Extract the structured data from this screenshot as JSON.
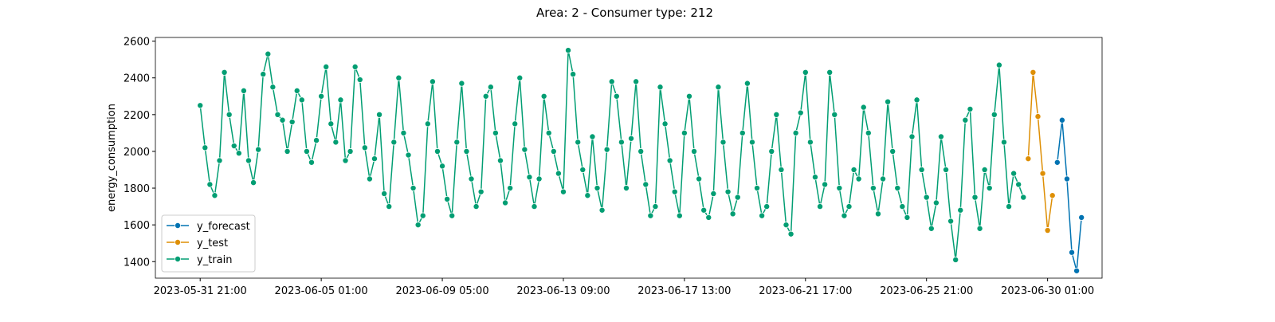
{
  "chart_data": {
    "type": "line",
    "title": "Area: 2 - Consumer type: 212",
    "ylabel": "energy_consumption",
    "xlim": [
      "2023-05-30 08:00",
      "2023-07-01 22:00"
    ],
    "ylim": [
      1310,
      2620
    ],
    "xticks": [
      "2023-05-31 21:00",
      "2023-06-05 01:00",
      "2023-06-09 05:00",
      "2023-06-13 09:00",
      "2023-06-17 13:00",
      "2023-06-21 17:00",
      "2023-06-25 21:00",
      "2023-06-30 01:00"
    ],
    "yticks": [
      1400,
      1600,
      1800,
      2000,
      2200,
      2400,
      2600
    ],
    "legend": "lower left",
    "marker": true,
    "series": [
      {
        "name": "y_forecast",
        "color": "#0173b2",
        "x": [
          "2023-06-30 09:00",
          "2023-06-30 13:00",
          "2023-06-30 17:00",
          "2023-06-30 21:00",
          "2023-07-01 01:00",
          "2023-07-01 05:00"
        ],
        "values": [
          1940,
          2170,
          1850,
          1450,
          1350,
          1640
        ]
      },
      {
        "name": "y_test",
        "color": "#de8f05",
        "x": [
          "2023-06-29 09:00",
          "2023-06-29 13:00",
          "2023-06-29 17:00",
          "2023-06-29 21:00",
          "2023-06-30 01:00",
          "2023-06-30 05:00"
        ],
        "values": [
          1960,
          2430,
          2190,
          1880,
          1570,
          1760
        ]
      },
      {
        "name": "y_train",
        "color": "#029e73",
        "x": [
          "2023-05-31 21:00",
          "2023-06-01 01:00",
          "2023-06-01 05:00",
          "2023-06-01 09:00",
          "2023-06-01 13:00",
          "2023-06-01 17:00",
          "2023-06-01 21:00",
          "2023-06-02 01:00",
          "2023-06-02 05:00",
          "2023-06-02 09:00",
          "2023-06-02 13:00",
          "2023-06-02 17:00",
          "2023-06-02 21:00",
          "2023-06-03 01:00",
          "2023-06-03 05:00",
          "2023-06-03 09:00",
          "2023-06-03 13:00",
          "2023-06-03 17:00",
          "2023-06-03 21:00",
          "2023-06-04 01:00",
          "2023-06-04 05:00",
          "2023-06-04 09:00",
          "2023-06-04 13:00",
          "2023-06-04 17:00",
          "2023-06-04 21:00",
          "2023-06-05 01:00",
          "2023-06-05 05:00",
          "2023-06-05 09:00",
          "2023-06-05 13:00",
          "2023-06-05 17:00",
          "2023-06-05 21:00",
          "2023-06-06 01:00",
          "2023-06-06 05:00",
          "2023-06-06 09:00",
          "2023-06-06 13:00",
          "2023-06-06 17:00",
          "2023-06-06 21:00",
          "2023-06-07 01:00",
          "2023-06-07 05:00",
          "2023-06-07 09:00",
          "2023-06-07 13:00",
          "2023-06-07 17:00",
          "2023-06-07 21:00",
          "2023-06-08 01:00",
          "2023-06-08 05:00",
          "2023-06-08 09:00",
          "2023-06-08 13:00",
          "2023-06-08 17:00",
          "2023-06-08 21:00",
          "2023-06-09 01:00",
          "2023-06-09 05:00",
          "2023-06-09 09:00",
          "2023-06-09 13:00",
          "2023-06-09 17:00",
          "2023-06-09 21:00",
          "2023-06-10 01:00",
          "2023-06-10 05:00",
          "2023-06-10 09:00",
          "2023-06-10 13:00",
          "2023-06-10 17:00",
          "2023-06-10 21:00",
          "2023-06-11 01:00",
          "2023-06-11 05:00",
          "2023-06-11 09:00",
          "2023-06-11 13:00",
          "2023-06-11 17:00",
          "2023-06-11 21:00",
          "2023-06-12 01:00",
          "2023-06-12 05:00",
          "2023-06-12 09:00",
          "2023-06-12 13:00",
          "2023-06-12 17:00",
          "2023-06-12 21:00",
          "2023-06-13 01:00",
          "2023-06-13 05:00",
          "2023-06-13 09:00",
          "2023-06-13 13:00",
          "2023-06-13 17:00",
          "2023-06-13 21:00",
          "2023-06-14 01:00",
          "2023-06-14 05:00",
          "2023-06-14 09:00",
          "2023-06-14 13:00",
          "2023-06-14 17:00",
          "2023-06-14 21:00",
          "2023-06-15 01:00",
          "2023-06-15 05:00",
          "2023-06-15 09:00",
          "2023-06-15 13:00",
          "2023-06-15 17:00",
          "2023-06-15 21:00",
          "2023-06-16 01:00",
          "2023-06-16 05:00",
          "2023-06-16 09:00",
          "2023-06-16 13:00",
          "2023-06-16 17:00",
          "2023-06-16 21:00",
          "2023-06-17 01:00",
          "2023-06-17 05:00",
          "2023-06-17 09:00",
          "2023-06-17 13:00",
          "2023-06-17 17:00",
          "2023-06-17 21:00",
          "2023-06-18 01:00",
          "2023-06-18 05:00",
          "2023-06-18 09:00",
          "2023-06-18 13:00",
          "2023-06-18 17:00",
          "2023-06-18 21:00",
          "2023-06-19 01:00",
          "2023-06-19 05:00",
          "2023-06-19 09:00",
          "2023-06-19 13:00",
          "2023-06-19 17:00",
          "2023-06-19 21:00",
          "2023-06-20 01:00",
          "2023-06-20 05:00",
          "2023-06-20 09:00",
          "2023-06-20 13:00",
          "2023-06-20 17:00",
          "2023-06-20 21:00",
          "2023-06-21 01:00",
          "2023-06-21 05:00",
          "2023-06-21 09:00",
          "2023-06-21 13:00",
          "2023-06-21 17:00",
          "2023-06-21 21:00",
          "2023-06-22 01:00",
          "2023-06-22 05:00",
          "2023-06-22 09:00",
          "2023-06-22 13:00",
          "2023-06-22 17:00",
          "2023-06-22 21:00",
          "2023-06-23 01:00",
          "2023-06-23 05:00",
          "2023-06-23 09:00",
          "2023-06-23 13:00",
          "2023-06-23 17:00",
          "2023-06-23 21:00",
          "2023-06-24 01:00",
          "2023-06-24 05:00",
          "2023-06-24 09:00",
          "2023-06-24 13:00",
          "2023-06-24 17:00",
          "2023-06-24 21:00",
          "2023-06-25 01:00",
          "2023-06-25 05:00",
          "2023-06-25 09:00",
          "2023-06-25 13:00",
          "2023-06-25 17:00",
          "2023-06-25 21:00",
          "2023-06-26 01:00",
          "2023-06-26 05:00",
          "2023-06-26 09:00",
          "2023-06-26 13:00",
          "2023-06-26 17:00",
          "2023-06-26 21:00",
          "2023-06-27 01:00",
          "2023-06-27 05:00",
          "2023-06-27 09:00",
          "2023-06-27 13:00",
          "2023-06-27 17:00",
          "2023-06-27 21:00",
          "2023-06-28 01:00",
          "2023-06-28 05:00",
          "2023-06-28 09:00",
          "2023-06-28 13:00",
          "2023-06-28 17:00",
          "2023-06-28 21:00",
          "2023-06-29 01:00",
          "2023-06-29 05:00"
        ],
        "values": [
          2250,
          2020,
          1820,
          1760,
          1950,
          2430,
          2200,
          2030,
          1990,
          2330,
          1950,
          1830,
          2010,
          2420,
          2530,
          2350,
          2200,
          2170,
          2000,
          2160,
          2330,
          2280,
          2000,
          1940,
          2060,
          2300,
          2460,
          2150,
          2050,
          2280,
          1950,
          2000,
          2460,
          2390,
          2020,
          1850,
          1960,
          2200,
          1770,
          1700,
          2050,
          2400,
          2100,
          1980,
          1800,
          1600,
          1650,
          2150,
          2380,
          2000,
          1920,
          1740,
          1650,
          2050,
          2370,
          2000,
          1850,
          1700,
          1780,
          2300,
          2350,
          2100,
          1950,
          1720,
          1800,
          2150,
          2400,
          2010,
          1860,
          1700,
          1850,
          2300,
          2100,
          2000,
          1880,
          1780,
          2550,
          2420,
          2050,
          1900,
          1760,
          2080,
          1800,
          1680,
          2010,
          2380,
          2300,
          2050,
          1800,
          2070,
          2380,
          2000,
          1820,
          1650,
          1700,
          2350,
          2150,
          1950,
          1780,
          1650,
          2100,
          2300,
          2000,
          1850,
          1680,
          1640,
          1770,
          2350,
          2050,
          1780,
          1660,
          1750,
          2100,
          2370,
          2050,
          1800,
          1650,
          1700,
          2000,
          2200,
          1900,
          1600,
          1550,
          2100,
          2210,
          2430,
          2050,
          1860,
          1700,
          1820,
          2430,
          2200,
          1800,
          1650,
          1700,
          1900,
          1850,
          2240,
          2100,
          1800,
          1660,
          1850,
          2270,
          2000,
          1800,
          1700,
          1640,
          2080,
          2280,
          1900,
          1750,
          1580,
          1720,
          2080,
          1900,
          1620,
          1410,
          1680,
          2170,
          2230,
          1750,
          1580,
          1900,
          1800,
          2200,
          2470,
          2050,
          1700,
          1880,
          1820,
          1750
        ]
      }
    ]
  }
}
